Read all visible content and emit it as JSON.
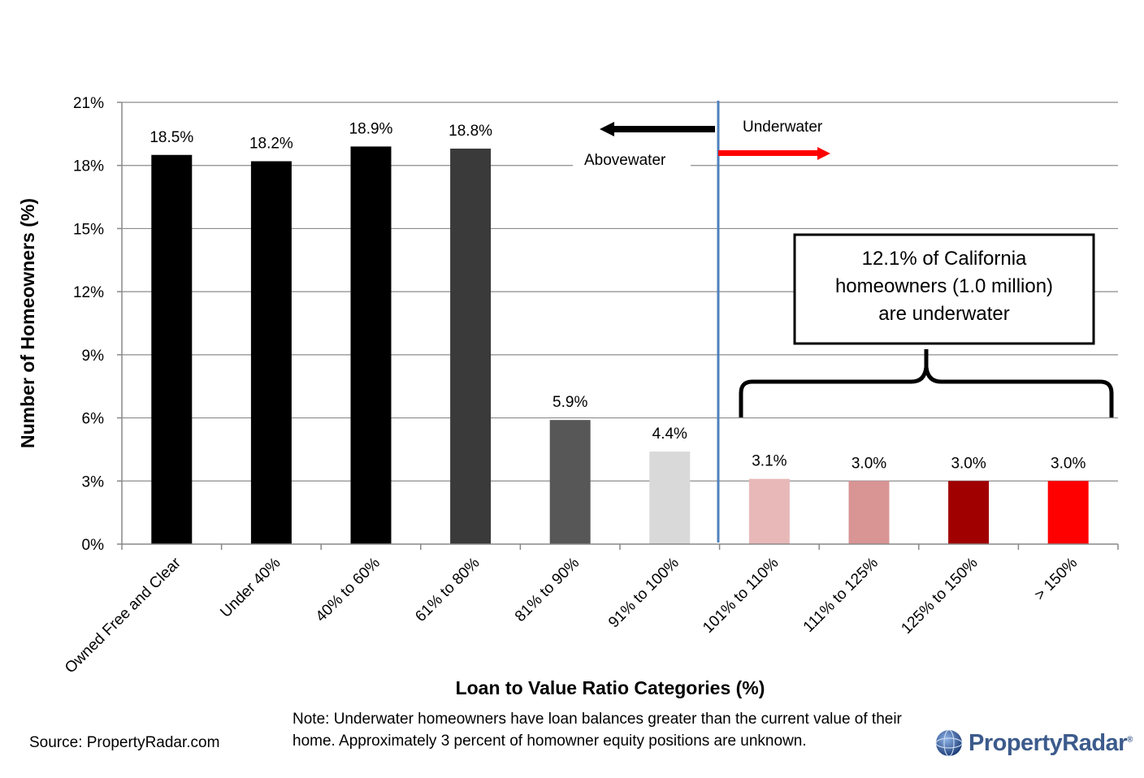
{
  "chart_data": {
    "type": "bar",
    "title": "",
    "xlabel": "Loan to Value Ratio Categories (%)",
    "ylabel": "Number of Homeowners (%)",
    "ylim": [
      0,
      21
    ],
    "yticks": [
      0,
      3,
      6,
      9,
      12,
      15,
      18,
      21
    ],
    "ytick_labels": [
      "0%",
      "3%",
      "6%",
      "9%",
      "12%",
      "15%",
      "18%",
      "21%"
    ],
    "grid": true,
    "categories": [
      "Owned Free and Clear",
      "Under 40%",
      "40% to 60%",
      "61% to 80%",
      "81% to 90%",
      "91% to 100%",
      "101% to 110%",
      "111% to 125%",
      "125% to 150%",
      "> 150%"
    ],
    "values": [
      18.5,
      18.2,
      18.9,
      18.8,
      5.9,
      4.4,
      3.1,
      3.0,
      3.0,
      3.0
    ],
    "data_labels": [
      "18.5%",
      "18.2%",
      "18.9%",
      "18.8%",
      "5.9%",
      "4.4%",
      "3.1%",
      "3.0%",
      "3.0%",
      "3.0%"
    ],
    "colors": [
      "#000000",
      "#000000",
      "#000000",
      "#3a3a3a",
      "#575757",
      "#d9d9d9",
      "#e8b8b8",
      "#d99494",
      "#a00000",
      "#ff0000"
    ],
    "annotations": {
      "underwater": "Underwater",
      "abovewater": "Abovewater",
      "callout_lines": [
        "12.1% of California",
        "homeowners (1.0 million)",
        "are underwater"
      ]
    },
    "divider_color": "#4f81bd",
    "arrow_left_color": "#000000",
    "arrow_right_color": "#ff0000"
  },
  "footer": {
    "source": "Source: PropertyRadar.com",
    "note": "Note: Underwater homeowners have loan balances greater than the current value of their home. Approximately 3 percent of homowner equity positions are unknown.",
    "logo_text": "PropertyRadar",
    "logo_mark": "®"
  }
}
